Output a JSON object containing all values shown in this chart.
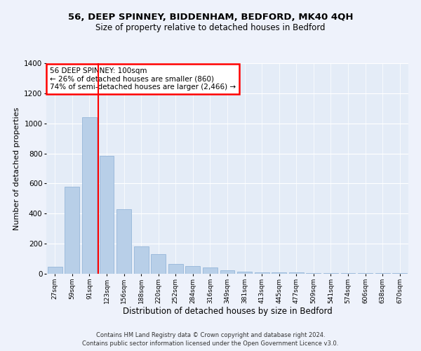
{
  "title1": "56, DEEP SPINNEY, BIDDENHAM, BEDFORD, MK40 4QH",
  "title2": "Size of property relative to detached houses in Bedford",
  "xlabel": "Distribution of detached houses by size in Bedford",
  "ylabel": "Number of detached properties",
  "categories": [
    "27sqm",
    "59sqm",
    "91sqm",
    "123sqm",
    "156sqm",
    "188sqm",
    "220sqm",
    "252sqm",
    "284sqm",
    "316sqm",
    "349sqm",
    "381sqm",
    "413sqm",
    "445sqm",
    "477sqm",
    "509sqm",
    "541sqm",
    "574sqm",
    "606sqm",
    "638sqm",
    "670sqm"
  ],
  "values": [
    45,
    580,
    1040,
    785,
    430,
    180,
    130,
    65,
    50,
    40,
    25,
    15,
    10,
    10,
    8,
    6,
    5,
    5,
    4,
    3,
    3
  ],
  "bar_color": "#b8cfe8",
  "bar_edge_color": "#8aafd4",
  "annotation_text_line1": "56 DEEP SPINNEY: 100sqm",
  "annotation_text_line2": "← 26% of detached houses are smaller (860)",
  "annotation_text_line3": "74% of semi-detached houses are larger (2,466) →",
  "annotation_box_color": "white",
  "annotation_box_edge_color": "red",
  "vline_color": "red",
  "vline_x": 2.5,
  "footer1": "Contains HM Land Registry data © Crown copyright and database right 2024.",
  "footer2": "Contains public sector information licensed under the Open Government Licence v3.0.",
  "background_color": "#eef2fb",
  "plot_bg_color": "#e4ecf7",
  "ylim": [
    0,
    1400
  ],
  "yticks": [
    0,
    200,
    400,
    600,
    800,
    1000,
    1200,
    1400
  ]
}
